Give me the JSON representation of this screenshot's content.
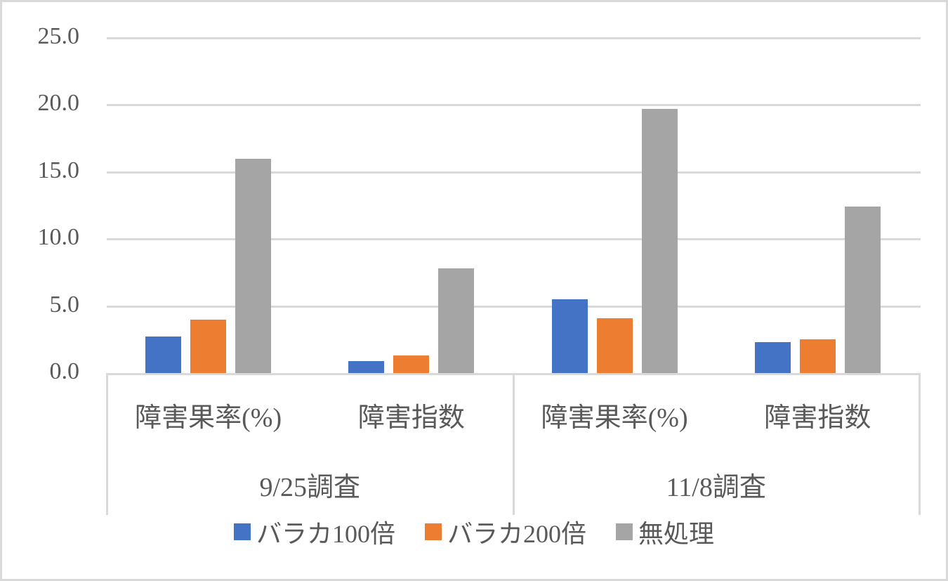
{
  "chart_data": {
    "type": "bar",
    "title": "",
    "xlabel": "",
    "ylabel": "",
    "ylim": [
      0,
      25
    ],
    "yticks": [
      "0.0",
      "5.0",
      "10.0",
      "15.0",
      "20.0",
      "25.0"
    ],
    "grid": true,
    "legend_position": "bottom",
    "groups": [
      {
        "label": "9/25調査",
        "categories": [
          "障害果率(%)",
          "障害指数"
        ]
      },
      {
        "label": "11/8調査",
        "categories": [
          "障害果率(%)",
          "障害指数"
        ]
      }
    ],
    "categories": [
      "9/25調査 障害果率(%)",
      "9/25調査 障害指数",
      "11/8調査 障害果率(%)",
      "11/8調査 障害指数"
    ],
    "series": [
      {
        "name": "バラカ100倍",
        "color": "#4472c4",
        "values": [
          2.7,
          0.9,
          5.5,
          2.3
        ]
      },
      {
        "name": "バラカ200倍",
        "color": "#ed7d31",
        "values": [
          4.0,
          1.3,
          4.1,
          2.5
        ]
      },
      {
        "name": "無処理",
        "color": "#a5a5a5",
        "values": [
          16.0,
          7.8,
          19.7,
          12.4
        ]
      }
    ]
  },
  "labels": {
    "cat0": "障害果率(%)",
    "cat1": "障害指数",
    "cat2": "障害果率(%)",
    "cat3": "障害指数",
    "group0": "9/25調査",
    "group1": "11/8調査"
  }
}
